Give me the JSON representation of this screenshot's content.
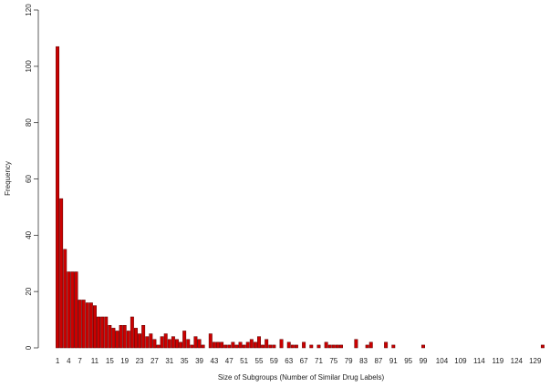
{
  "chart_data": {
    "type": "bar",
    "xlabel": "Size of Subgroups (Number of Similar Drug Labels)",
    "ylabel": "Frequency",
    "color": "#cc0000",
    "ylim": [
      0,
      120
    ],
    "yticks": [
      0,
      20,
      40,
      60,
      80,
      100,
      120
    ],
    "categories": [
      "1",
      null,
      null,
      "4",
      null,
      null,
      "7",
      null,
      null,
      null,
      "11",
      null,
      null,
      null,
      "15",
      null,
      null,
      null,
      "19",
      null,
      null,
      null,
      "23",
      null,
      null,
      null,
      "27",
      null,
      null,
      null,
      "31",
      null,
      null,
      null,
      "35",
      null,
      null,
      null,
      "39",
      null,
      null,
      null,
      "43",
      null,
      null,
      null,
      "47",
      null,
      null,
      null,
      "51",
      null,
      null,
      null,
      "55",
      null,
      null,
      null,
      "59",
      null,
      null,
      null,
      "63",
      null,
      null,
      null,
      "67",
      null,
      null,
      null,
      "71",
      null,
      null,
      null,
      "75",
      null,
      null,
      null,
      "79",
      null,
      null,
      null,
      "83",
      null,
      null,
      null,
      "87",
      null,
      null,
      null,
      "91",
      null,
      null,
      null,
      "95",
      null,
      null,
      null,
      "99",
      null,
      null,
      null,
      null,
      "104",
      null,
      null,
      null,
      null,
      "109",
      null,
      null,
      null,
      null,
      "114",
      null,
      null,
      null,
      null,
      "119",
      null,
      null,
      null,
      null,
      "124",
      null,
      null,
      null,
      null,
      "129",
      null,
      null
    ],
    "values": [
      107,
      53,
      35,
      27,
      27,
      27,
      17,
      17,
      16,
      16,
      15,
      11,
      11,
      11,
      8,
      7,
      6,
      8,
      8,
      6,
      11,
      7,
      5,
      8,
      4,
      5,
      3,
      1,
      4,
      5,
      3,
      4,
      3,
      2,
      6,
      3,
      1,
      4,
      3,
      1,
      0,
      5,
      2,
      2,
      2,
      1,
      1,
      2,
      1,
      2,
      1,
      2,
      3,
      2,
      4,
      1,
      3,
      1,
      1,
      0,
      3,
      0,
      2,
      1,
      1,
      0,
      2,
      0,
      1,
      0,
      1,
      0,
      2,
      1,
      1,
      1,
      1,
      0,
      0,
      0,
      3,
      0,
      0,
      1,
      2,
      0,
      0,
      0,
      2,
      0,
      1,
      0,
      0,
      0,
      0,
      0,
      0,
      0,
      1,
      0,
      0,
      0,
      0,
      0,
      0,
      0,
      0,
      0,
      0,
      0,
      0,
      0,
      0,
      0,
      0,
      0,
      0,
      0,
      0,
      0,
      0,
      0,
      0,
      0,
      0,
      0,
      0,
      0,
      0,
      0,
      1
    ]
  }
}
